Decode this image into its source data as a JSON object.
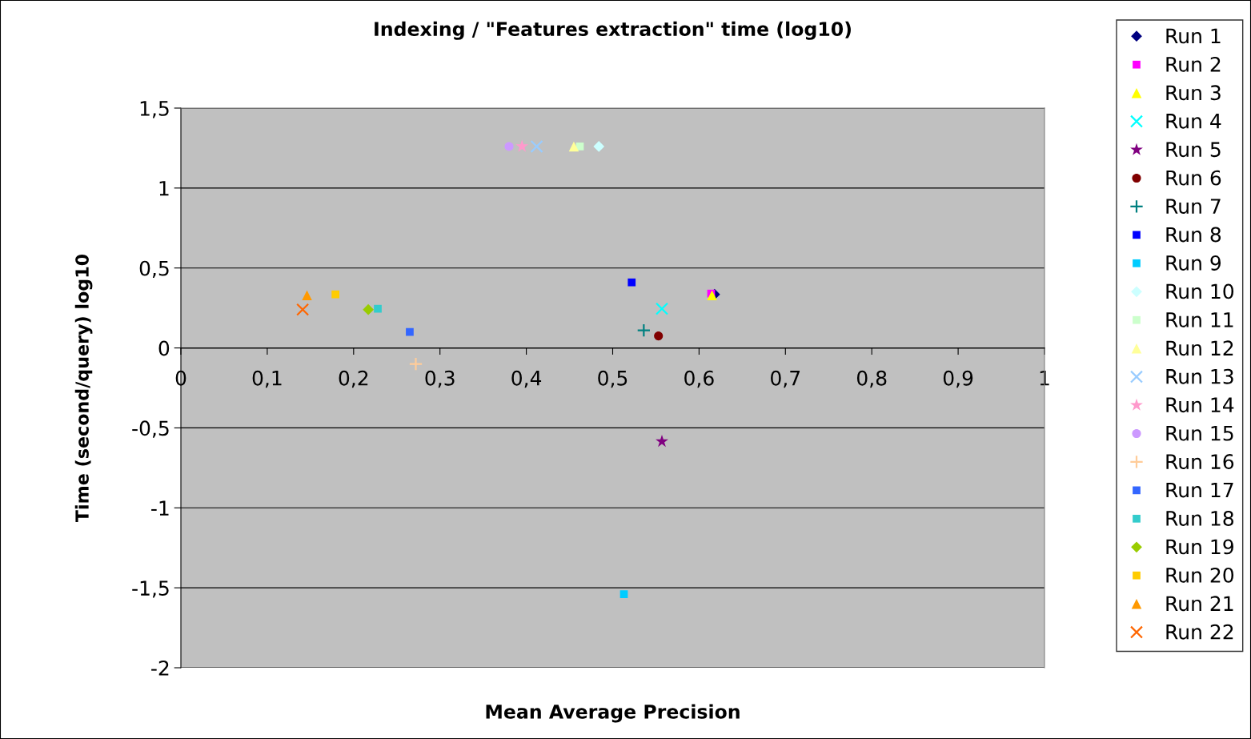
{
  "chart_data": {
    "type": "scatter",
    "title": "Indexing / \"Features extraction\" time (log10)",
    "xlabel": "Mean Average Precision",
    "ylabel": "Time (second/query) log10",
    "xlim": [
      0,
      1
    ],
    "ylim": [
      -2,
      1.5
    ],
    "xticks": [
      0,
      {
        "value": 0.1,
        "label": "0,1"
      },
      {
        "value": 0.2,
        "label": "0,2"
      },
      {
        "value": 0.3,
        "label": "0,3"
      },
      {
        "value": 0.4,
        "label": "0,4"
      },
      {
        "value": 0.5,
        "label": "0,5"
      },
      {
        "value": 0.6,
        "label": "0,6"
      },
      {
        "value": 0.7,
        "label": "0,7"
      },
      {
        "value": 0.8,
        "label": "0,8"
      },
      {
        "value": 0.9,
        "label": "0,9"
      },
      1
    ],
    "yticks": [
      -2,
      {
        "value": -1.5,
        "label": "-1,5"
      },
      -1,
      {
        "value": -0.5,
        "label": "-0,5"
      },
      0,
      {
        "value": 0.5,
        "label": "0,5"
      },
      1,
      {
        "value": 1.5,
        "label": "1,5"
      }
    ],
    "grid": "y",
    "legend": "right",
    "series": [
      {
        "name": "Run 1",
        "color": "#000080",
        "marker": "diamond",
        "x": [
          0.618
        ],
        "values": [
          0.335
        ]
      },
      {
        "name": "Run 2",
        "color": "#ff00ff",
        "marker": "square",
        "x": [
          0.614
        ],
        "values": [
          0.34
        ]
      },
      {
        "name": "Run 3",
        "color": "#ffff00",
        "marker": "triangle",
        "x": [
          0.615
        ],
        "values": [
          0.33
        ]
      },
      {
        "name": "Run 4",
        "color": "#00ffff",
        "marker": "cross",
        "x": [
          0.557
        ],
        "values": [
          0.245
        ]
      },
      {
        "name": "Run 5",
        "color": "#800080",
        "marker": "star",
        "x": [
          0.557
        ],
        "values": [
          -0.585
        ]
      },
      {
        "name": "Run 6",
        "color": "#800000",
        "marker": "circle",
        "x": [
          0.553
        ],
        "values": [
          0.075
        ]
      },
      {
        "name": "Run 7",
        "color": "#008080",
        "marker": "plus",
        "x": [
          0.536
        ],
        "values": [
          0.11
        ]
      },
      {
        "name": "Run 8",
        "color": "#0000ff",
        "marker": "square",
        "x": [
          0.522
        ],
        "values": [
          0.41
        ]
      },
      {
        "name": "Run 9",
        "color": "#00ccff",
        "marker": "square",
        "x": [
          0.513
        ],
        "values": [
          -1.54
        ]
      },
      {
        "name": "Run 10",
        "color": "#ccffff",
        "marker": "diamond",
        "x": [
          0.484
        ],
        "values": [
          1.26
        ]
      },
      {
        "name": "Run 11",
        "color": "#ccffcc",
        "marker": "square",
        "x": [
          0.462
        ],
        "values": [
          1.26
        ]
      },
      {
        "name": "Run 12",
        "color": "#ffff99",
        "marker": "triangle",
        "x": [
          0.455
        ],
        "values": [
          1.26
        ]
      },
      {
        "name": "Run 13",
        "color": "#99ccff",
        "marker": "cross",
        "x": [
          0.412
        ],
        "values": [
          1.26
        ]
      },
      {
        "name": "Run 14",
        "color": "#ff99cc",
        "marker": "star",
        "x": [
          0.395
        ],
        "values": [
          1.26
        ]
      },
      {
        "name": "Run 15",
        "color": "#cc99ff",
        "marker": "circle",
        "x": [
          0.38
        ],
        "values": [
          1.26
        ]
      },
      {
        "name": "Run 16",
        "color": "#ffcc99",
        "marker": "plus",
        "x": [
          0.272
        ],
        "values": [
          -0.1
        ]
      },
      {
        "name": "Run 17",
        "color": "#3366ff",
        "marker": "square",
        "x": [
          0.265
        ],
        "values": [
          0.1
        ]
      },
      {
        "name": "Run 18",
        "color": "#33cccc",
        "marker": "square",
        "x": [
          0.228
        ],
        "values": [
          0.245
        ]
      },
      {
        "name": "Run 19",
        "color": "#99cc00",
        "marker": "diamond",
        "x": [
          0.217
        ],
        "values": [
          0.24
        ]
      },
      {
        "name": "Run 20",
        "color": "#ffcc00",
        "marker": "square",
        "x": [
          0.179
        ],
        "values": [
          0.335
        ]
      },
      {
        "name": "Run 21",
        "color": "#ff9900",
        "marker": "triangle",
        "x": [
          0.146
        ],
        "values": [
          0.33
        ]
      },
      {
        "name": "Run 22",
        "color": "#ff6600",
        "marker": "cross",
        "x": [
          0.141
        ],
        "values": [
          0.24
        ]
      }
    ]
  }
}
